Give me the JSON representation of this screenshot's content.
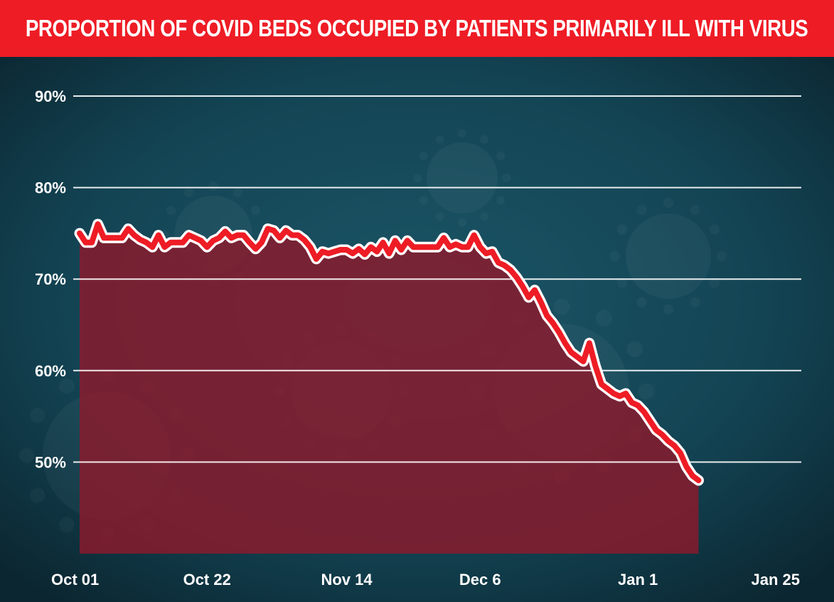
{
  "header": {
    "title": "PROPORTION OF COVID BEDS OCCUPIED BY PATIENTS PRIMARILY ILL WITH VIRUS"
  },
  "colors": {
    "title_bar": "#ee1c25",
    "line": "#ee1c25",
    "line_outline": "#ffffff",
    "area_fill": "#8c1a2c",
    "background": "#0f3443",
    "gridline": "#ffffff",
    "text": "#ffffff"
  },
  "chart_data": {
    "type": "area",
    "title": "PROPORTION OF COVID BEDS OCCUPIED BY PATIENTS PRIMARILY ILL WITH VIRUS",
    "xlabel": "",
    "ylabel": "",
    "ylim": [
      40,
      90
    ],
    "y_ticks": [
      {
        "value": 90,
        "label": "90%"
      },
      {
        "value": 80,
        "label": "80%"
      },
      {
        "value": 70,
        "label": "70%"
      },
      {
        "value": 60,
        "label": "60%"
      },
      {
        "value": 50,
        "label": "50%"
      }
    ],
    "x_ticks": [
      {
        "date": "2021-10-01",
        "label": "Oct 01"
      },
      {
        "date": "2021-10-22",
        "label": "Oct 22"
      },
      {
        "date": "2021-11-14",
        "label": "Nov 14"
      },
      {
        "date": "2021-12-06",
        "label": "Dec 6"
      },
      {
        "date": "2022-01-01",
        "label": "Jan 1"
      },
      {
        "date": "2022-01-25",
        "label": "Jan 25"
      }
    ],
    "xlim": [
      "2021-10-01",
      "2022-01-25"
    ],
    "grid": true,
    "legend": "none",
    "series": [
      {
        "points": [
          [
            "2021-10-01",
            75.0
          ],
          [
            "2021-10-02",
            74.0
          ],
          [
            "2021-10-03",
            74.0
          ],
          [
            "2021-10-04",
            76.0
          ],
          [
            "2021-10-05",
            74.5
          ],
          [
            "2021-10-06",
            74.5
          ],
          [
            "2021-10-07",
            74.5
          ],
          [
            "2021-10-08",
            74.5
          ],
          [
            "2021-10-09",
            75.5
          ],
          [
            "2021-10-10",
            74.8
          ],
          [
            "2021-10-11",
            74.3
          ],
          [
            "2021-10-12",
            74.0
          ],
          [
            "2021-10-13",
            73.5
          ],
          [
            "2021-10-14",
            74.8
          ],
          [
            "2021-10-15",
            73.5
          ],
          [
            "2021-10-16",
            74.0
          ],
          [
            "2021-10-17",
            74.0
          ],
          [
            "2021-10-18",
            74.0
          ],
          [
            "2021-10-19",
            74.8
          ],
          [
            "2021-10-20",
            74.5
          ],
          [
            "2021-10-21",
            74.2
          ],
          [
            "2021-10-22",
            73.5
          ],
          [
            "2021-10-23",
            74.2
          ],
          [
            "2021-10-24",
            74.5
          ],
          [
            "2021-10-25",
            75.2
          ],
          [
            "2021-10-26",
            74.5
          ],
          [
            "2021-10-27",
            74.8
          ],
          [
            "2021-10-28",
            74.8
          ],
          [
            "2021-10-29",
            74.0
          ],
          [
            "2021-10-30",
            73.3
          ],
          [
            "2021-10-31",
            74.0
          ],
          [
            "2021-11-01",
            75.5
          ],
          [
            "2021-11-02",
            75.3
          ],
          [
            "2021-11-03",
            74.5
          ],
          [
            "2021-11-04",
            75.3
          ],
          [
            "2021-11-05",
            74.8
          ],
          [
            "2021-11-06",
            74.8
          ],
          [
            "2021-11-07",
            74.3
          ],
          [
            "2021-11-08",
            73.5
          ],
          [
            "2021-11-09",
            72.2
          ],
          [
            "2021-11-10",
            73.0
          ],
          [
            "2021-11-11",
            72.8
          ],
          [
            "2021-11-12",
            73.0
          ],
          [
            "2021-11-13",
            73.2
          ],
          [
            "2021-11-14",
            73.2
          ],
          [
            "2021-11-15",
            72.8
          ],
          [
            "2021-11-16",
            73.3
          ],
          [
            "2021-11-17",
            72.7
          ],
          [
            "2021-11-18",
            73.5
          ],
          [
            "2021-11-19",
            73.0
          ],
          [
            "2021-11-20",
            74.0
          ],
          [
            "2021-11-21",
            72.8
          ],
          [
            "2021-11-22",
            74.2
          ],
          [
            "2021-11-23",
            73.2
          ],
          [
            "2021-11-24",
            74.2
          ],
          [
            "2021-11-25",
            73.5
          ],
          [
            "2021-11-26",
            73.5
          ],
          [
            "2021-11-27",
            73.5
          ],
          [
            "2021-11-28",
            73.5
          ],
          [
            "2021-11-29",
            73.5
          ],
          [
            "2021-11-30",
            74.5
          ],
          [
            "2021-12-01",
            73.5
          ],
          [
            "2021-12-02",
            73.8
          ],
          [
            "2021-12-03",
            73.5
          ],
          [
            "2021-12-04",
            73.5
          ],
          [
            "2021-12-05",
            74.8
          ],
          [
            "2021-12-06",
            73.5
          ],
          [
            "2021-12-07",
            72.8
          ],
          [
            "2021-12-08",
            73.0
          ],
          [
            "2021-12-09",
            71.8
          ],
          [
            "2021-12-10",
            71.5
          ],
          [
            "2021-12-11",
            71.0
          ],
          [
            "2021-12-12",
            70.2
          ],
          [
            "2021-12-13",
            69.2
          ],
          [
            "2021-12-14",
            68.0
          ],
          [
            "2021-12-15",
            68.8
          ],
          [
            "2021-12-16",
            67.5
          ],
          [
            "2021-12-17",
            66.0
          ],
          [
            "2021-12-18",
            65.2
          ],
          [
            "2021-12-19",
            64.2
          ],
          [
            "2021-12-20",
            63.0
          ],
          [
            "2021-12-21",
            62.0
          ],
          [
            "2021-12-22",
            61.5
          ],
          [
            "2021-12-23",
            61.0
          ],
          [
            "2021-12-24",
            63.0
          ],
          [
            "2021-12-25",
            60.5
          ],
          [
            "2021-12-26",
            58.5
          ],
          [
            "2021-12-27",
            58.0
          ],
          [
            "2021-12-28",
            57.5
          ],
          [
            "2021-12-29",
            57.2
          ],
          [
            "2021-12-30",
            57.5
          ],
          [
            "2021-12-31",
            56.5
          ],
          [
            "2022-01-01",
            56.2
          ],
          [
            "2022-01-02",
            55.5
          ],
          [
            "2022-01-03",
            54.5
          ],
          [
            "2022-01-04",
            53.5
          ],
          [
            "2022-01-05",
            53.0
          ],
          [
            "2022-01-06",
            52.3
          ],
          [
            "2022-01-07",
            51.8
          ],
          [
            "2022-01-08",
            51.0
          ],
          [
            "2022-01-09",
            49.5
          ],
          [
            "2022-01-10",
            48.5
          ],
          [
            "2022-01-11",
            48.0
          ]
        ]
      }
    ]
  }
}
